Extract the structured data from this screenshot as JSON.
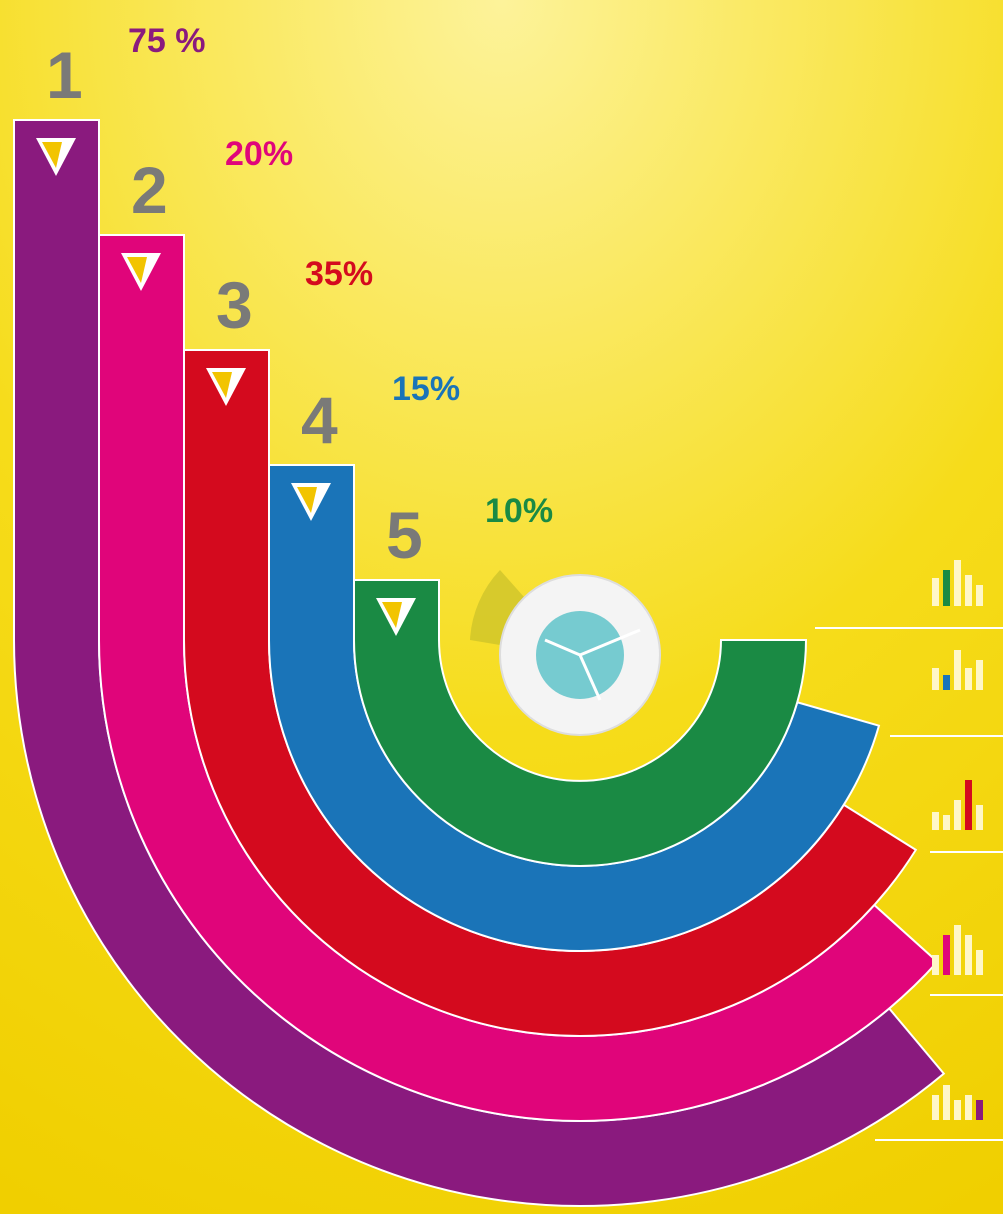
{
  "steps": [
    {
      "number": "1",
      "percent": "75 %"
    },
    {
      "number": "2",
      "percent": "20%"
    },
    {
      "number": "3",
      "percent": "35%"
    },
    {
      "number": "4",
      "percent": "15%"
    },
    {
      "number": "5",
      "percent": "10%"
    }
  ]
}
